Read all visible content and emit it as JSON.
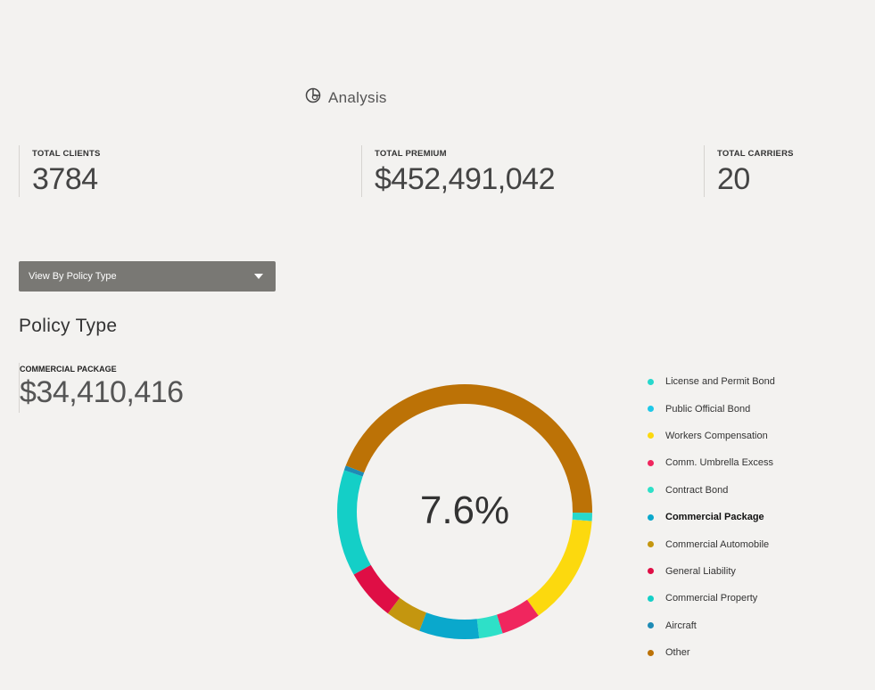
{
  "header": {
    "title": "Analysis",
    "icon": "analysis-icon"
  },
  "stats": [
    {
      "label": "TOTAL CLIENTS",
      "value": "3784"
    },
    {
      "label": "TOTAL PREMIUM",
      "value": "$452,491,042"
    },
    {
      "label": "TOTAL CARRIERS",
      "value": "20"
    }
  ],
  "view_select": {
    "selected": "View By Policy Type"
  },
  "section_title": "Policy Type",
  "selected": {
    "label": "COMMERCIAL PACKAGE",
    "value": "$34,410,416"
  },
  "chart_data": {
    "type": "pie",
    "center_label": "7.6%",
    "active_slice": "Commercial Package",
    "slices": [
      {
        "name": "License and Permit Bond",
        "percent": 1.0,
        "color": "#27d8cc"
      },
      {
        "name": "Public Official Bond",
        "percent": 0.05,
        "color": "#1ec8e8"
      },
      {
        "name": "Workers Compensation",
        "percent": 14.0,
        "color": "#fcd90e"
      },
      {
        "name": "Comm. Umbrella Excess",
        "percent": 5.0,
        "color": "#f0265e"
      },
      {
        "name": "Contract Bond",
        "percent": 3.0,
        "color": "#2ee0c8"
      },
      {
        "name": "Commercial Package",
        "percent": 7.6,
        "color": "#0aa8cc"
      },
      {
        "name": "Commercial Automobile",
        "percent": 4.5,
        "color": "#c4960f"
      },
      {
        "name": "General Liability",
        "percent": 6.5,
        "color": "#df0e45"
      },
      {
        "name": "Commercial Property",
        "percent": 13.5,
        "color": "#14cfc7"
      },
      {
        "name": "Aircraft",
        "percent": 0.6,
        "color": "#1e8bb5"
      },
      {
        "name": "Other",
        "percent": 44.25,
        "color": "#bc7206"
      }
    ]
  }
}
